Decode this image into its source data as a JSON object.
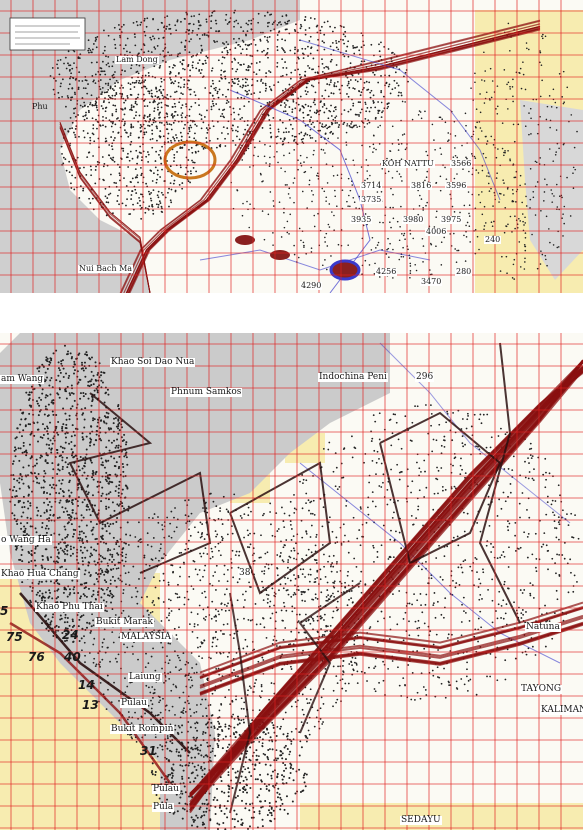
{
  "top_map": {
    "labels": [
      {
        "id": "top-label-lam-dong",
        "text": "Lam Dong"
      },
      {
        "id": "top-label-phu",
        "text": "Phu"
      },
      {
        "id": "top-label-nui-bach-ma",
        "text": "Nui Bach Ma"
      },
      {
        "id": "top-label-koh-nattu",
        "text": "KOH NATTU"
      },
      {
        "id": "top-label-d3566",
        "text": "3566"
      },
      {
        "id": "top-label-d3714",
        "text": "3714"
      },
      {
        "id": "top-label-d3816",
        "text": "3816"
      },
      {
        "id": "top-label-d3596",
        "text": "3596"
      },
      {
        "id": "top-label-d3735",
        "text": "3735"
      },
      {
        "id": "top-label-d3935",
        "text": "3935"
      },
      {
        "id": "top-label-d3980",
        "text": "3980"
      },
      {
        "id": "top-label-d3975",
        "text": "3975"
      },
      {
        "id": "top-label-d4006",
        "text": "4006"
      },
      {
        "id": "top-label-d4256",
        "text": "4256"
      },
      {
        "id": "top-label-d3470",
        "text": "3470"
      },
      {
        "id": "top-label-d4290",
        "text": "4290"
      },
      {
        "id": "top-label-d280",
        "text": "280"
      },
      {
        "id": "top-label-d240",
        "text": "240"
      }
    ]
  },
  "bottom_map": {
    "labels": [
      {
        "id": "bottom-label-khao-soi-dao-nua",
        "text": "Khao Soi Dao Nua"
      },
      {
        "id": "bottom-label-phnum-samkos",
        "text": "Phnum Samkos"
      },
      {
        "id": "bottom-label-indochina",
        "text": "Indochina Peni"
      },
      {
        "id": "bottom-label-am-wang",
        "text": "am Wang"
      },
      {
        "id": "bottom-label-o-wang-ha",
        "text": "o Wang Ha"
      },
      {
        "id": "bottom-label-khao-hua-chang",
        "text": "Khao Hua Chang"
      },
      {
        "id": "bottom-label-khao-phu-thai",
        "text": "Khao Phu Thai"
      },
      {
        "id": "bottom-label-bukit-marak",
        "text": "Bukit Marak"
      },
      {
        "id": "bottom-label-malaysia",
        "text": "MALAYSIA"
      },
      {
        "id": "bottom-label-laiung",
        "text": "Laiung"
      },
      {
        "id": "bottom-label-pulau",
        "text": "Pulau"
      },
      {
        "id": "bottom-label-bukit-rompin",
        "text": "Bukit Rompin"
      },
      {
        "id": "bottom-label-pulau-2",
        "text": "Pulau"
      },
      {
        "id": "bottom-label-pula",
        "text": "Pula"
      },
      {
        "id": "bottom-label-sedayu",
        "text": "SEDAYU"
      },
      {
        "id": "bottom-label-natuna",
        "text": "Natuna"
      },
      {
        "id": "bottom-label-kalimantan",
        "text": "KALIMAN"
      },
      {
        "id": "bottom-label-tayong",
        "text": "TAYONG"
      },
      {
        "id": "bottom-label-n38",
        "text": "38"
      },
      {
        "id": "bottom-label-n296",
        "text": "296"
      }
    ],
    "depth_labels": [
      {
        "id": "depth-label-5",
        "text": "5"
      },
      {
        "id": "depth-label-75",
        "text": "75"
      },
      {
        "id": "depth-label-24",
        "text": "24"
      },
      {
        "id": "depth-label-76",
        "text": "76"
      },
      {
        "id": "depth-label-40",
        "text": "40"
      },
      {
        "id": "depth-label-14",
        "text": "14"
      },
      {
        "id": "depth-label-13",
        "text": "13"
      },
      {
        "id": "depth-label-31",
        "text": "31"
      }
    ]
  },
  "colors": {
    "grid_red": "#e02020",
    "track_red": "#8a1010",
    "track_black": "#2a1010",
    "land_gray": "#c9c9c9",
    "sounding_black": "#222222",
    "contour_blue": "#3a3acc",
    "shallow_yellow": "#f7ecb0",
    "reef_orange": "#c9771e"
  }
}
